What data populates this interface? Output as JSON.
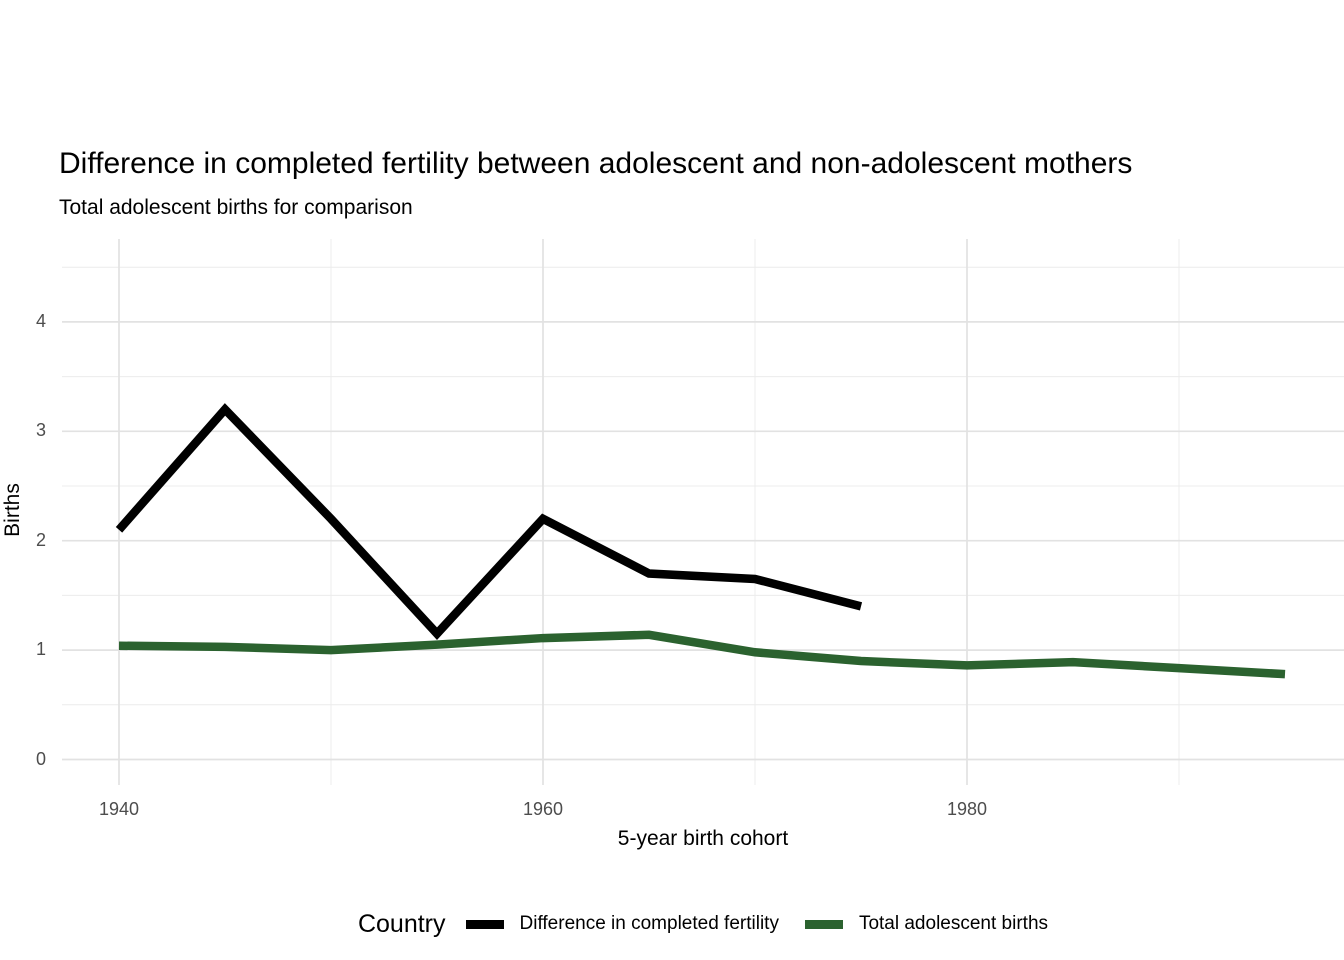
{
  "chart_data": {
    "type": "line",
    "title": "Difference in completed fertility between adolescent and non-adolescent mothers",
    "subtitle": "Total adolescent births for comparison",
    "xlabel": "5-year birth cohort",
    "ylabel": "Births",
    "x_ticks": {
      "major": [
        1940,
        1960,
        1980
      ],
      "minor": [
        1950,
        1970,
        1990
      ]
    },
    "y_ticks": {
      "major": [
        0,
        1,
        2,
        3,
        4
      ],
      "minor": [
        0.5,
        1.5,
        2.5,
        3.5,
        4.5
      ]
    },
    "x_range_visible": [
      1937,
      1998
    ],
    "y_range_visible": [
      -0.25,
      4.75
    ],
    "grid": true,
    "legend": {
      "title": "Country",
      "position": "bottom"
    },
    "series": [
      {
        "name": "Difference in completed fertility",
        "color": "#000000",
        "x": [
          1940,
          1945,
          1950,
          1955,
          1960,
          1965,
          1970,
          1975
        ],
        "y": [
          2.1,
          3.2,
          2.2,
          1.15,
          2.2,
          1.7,
          1.65,
          1.4
        ]
      },
      {
        "name": "Total adolescent births",
        "color": "#2B622F",
        "x": [
          1940,
          1945,
          1950,
          1955,
          1960,
          1965,
          1970,
          1975,
          1980,
          1985,
          1990,
          1995
        ],
        "y": [
          1.04,
          1.03,
          1.0,
          1.05,
          1.11,
          1.14,
          0.98,
          0.9,
          0.86,
          0.89,
          0.835,
          0.78
        ]
      }
    ]
  }
}
